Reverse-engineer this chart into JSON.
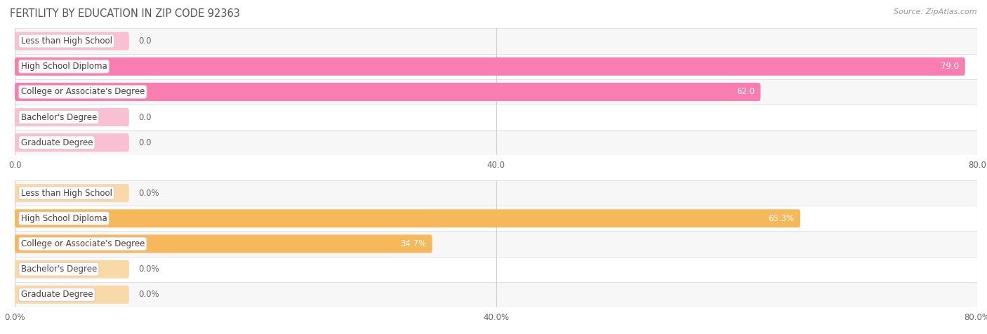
{
  "title": "FERTILITY BY EDUCATION IN ZIP CODE 92363",
  "source": "Source: ZipAtlas.com",
  "top_chart": {
    "categories": [
      "Less than High School",
      "High School Diploma",
      "College or Associate's Degree",
      "Bachelor's Degree",
      "Graduate Degree"
    ],
    "values": [
      0.0,
      79.0,
      62.0,
      0.0,
      0.0
    ],
    "bar_color": "#F87DB0",
    "zero_bar_color": "#F9C0D4",
    "xlim": [
      0,
      80.0
    ],
    "xticks": [
      0.0,
      40.0,
      80.0
    ],
    "xtick_labels": [
      "0.0",
      "40.0",
      "80.0"
    ],
    "row_colors": [
      "#f7f7f7",
      "#ffffff",
      "#f7f7f7",
      "#ffffff",
      "#f7f7f7"
    ]
  },
  "bottom_chart": {
    "categories": [
      "Less than High School",
      "High School Diploma",
      "College or Associate's Degree",
      "Bachelor's Degree",
      "Graduate Degree"
    ],
    "values": [
      0.0,
      65.3,
      34.7,
      0.0,
      0.0
    ],
    "bar_color": "#F5B85A",
    "zero_bar_color": "#FAD9A8",
    "xlim": [
      0,
      80.0
    ],
    "xticks": [
      0.0,
      40.0,
      80.0
    ],
    "xtick_labels": [
      "0.0%",
      "40.0%",
      "80.0%"
    ],
    "row_colors": [
      "#f7f7f7",
      "#ffffff",
      "#f7f7f7",
      "#ffffff",
      "#f7f7f7"
    ]
  },
  "bar_height": 0.72,
  "label_fontsize": 8.5,
  "title_fontsize": 10.5,
  "source_fontsize": 8,
  "value_fontsize": 8.5,
  "tick_fontsize": 8.5,
  "zero_stub_value": 9.5
}
